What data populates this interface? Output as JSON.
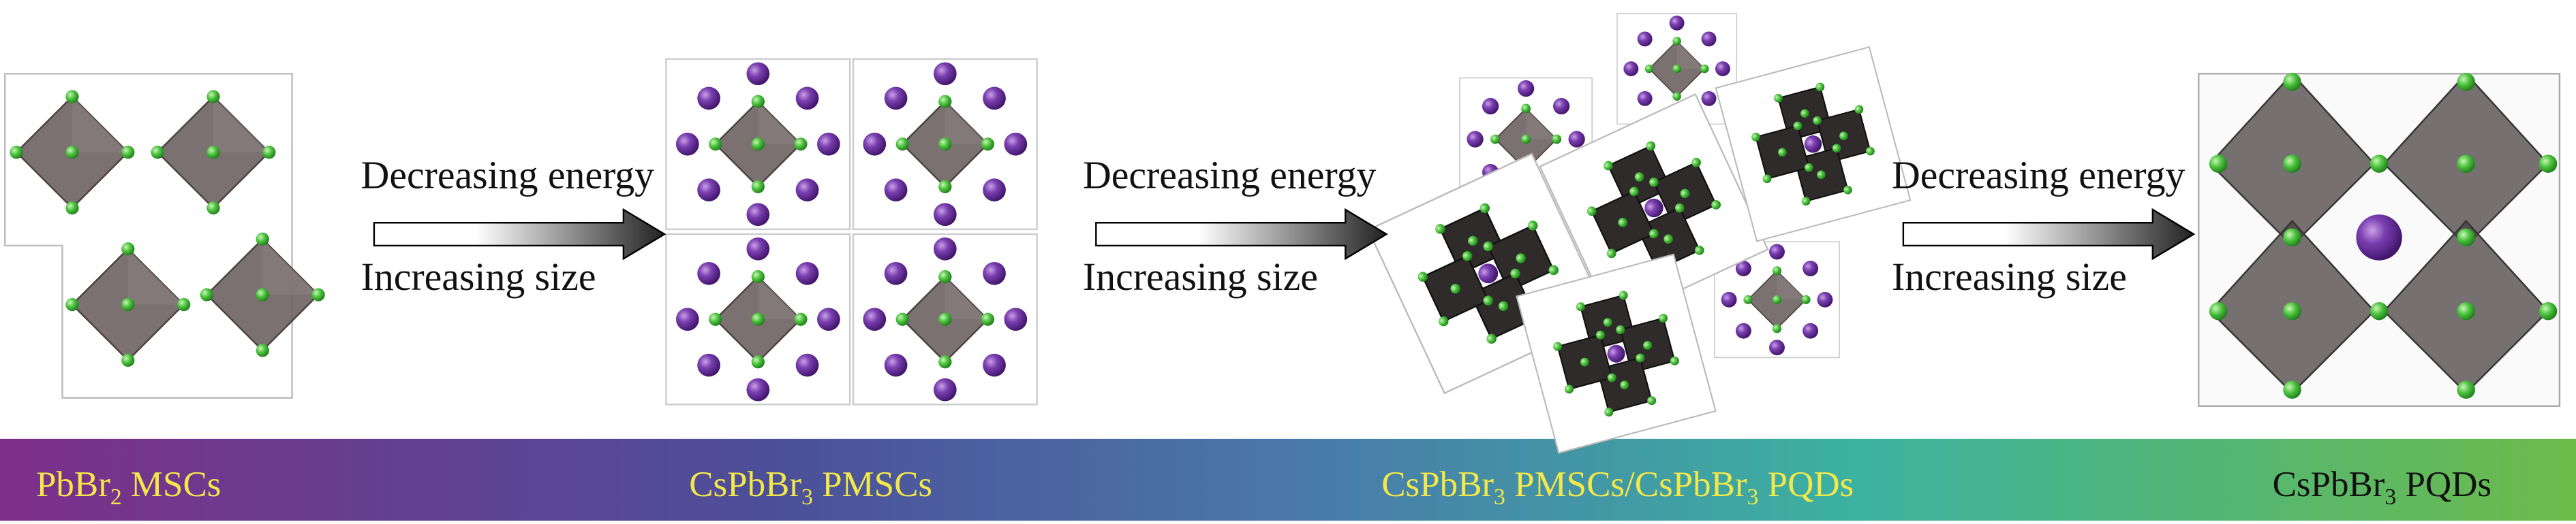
{
  "arrows": [
    {
      "top": "Decreasing energy",
      "bottom": "Increasing size"
    },
    {
      "top": "Decreasing energy",
      "bottom": "Increasing size"
    },
    {
      "top": "Decreasing energy",
      "bottom": "Increasing size"
    }
  ],
  "stages": [
    {
      "label": [
        "PbBr",
        "2",
        " MSCs"
      ]
    },
    {
      "label": [
        "CsPbBr",
        "3",
        " PMSCs"
      ]
    },
    {
      "label": [
        "CsPbBr",
        "3",
        " PMSCs/CsPbBr",
        "3",
        " PQDs"
      ]
    },
    {
      "label": [
        "CsPbBr",
        "3",
        " PQDs"
      ]
    }
  ]
}
